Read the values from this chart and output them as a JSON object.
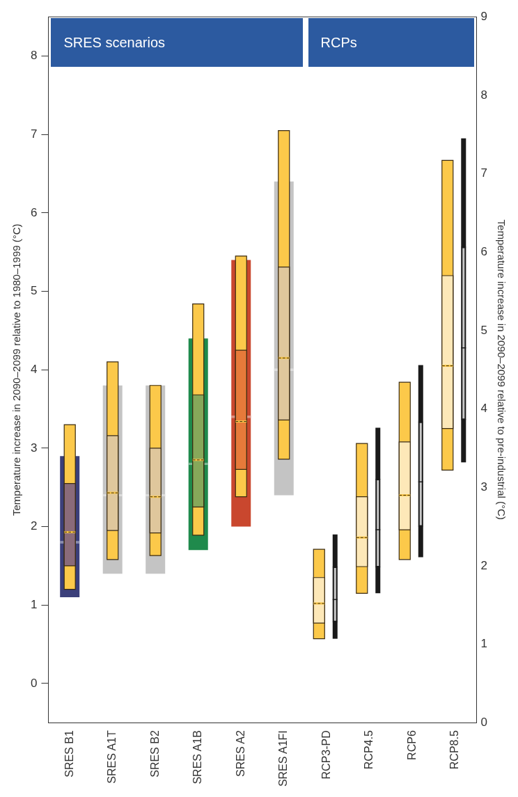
{
  "chart_data": {
    "type": "box",
    "categories": [
      "SRES B1",
      "SRES A1T",
      "SRES B2",
      "SRES A1B",
      "SRES A2",
      "SRES A1FI",
      "RCP3-PD",
      "RCP4.5",
      "RCP6",
      "RCP8.5"
    ],
    "ylabel": "Temperature increase in 2090–2099 relative to 1980–1999 (°C)",
    "y2label": "Temperature increase in 2090–2099 relative to pre-industrial (°C)",
    "annotations": [
      "SRES scenarios",
      "RCPs"
    ],
    "ylim": [
      -0.5,
      8.5
    ],
    "yticks": [
      0,
      1,
      2,
      3,
      4,
      5,
      6,
      7,
      8
    ],
    "y2lim": [
      0,
      9
    ],
    "y2ticks": [
      0,
      1,
      2,
      3,
      4,
      5,
      6,
      7,
      8,
      9
    ],
    "grid": false,
    "legend": false,
    "series": [
      {
        "axis": "y",
        "colors": [
          "#3b3f7a",
          "#c4c4c4",
          "#c4c4c4",
          "#1f8a4c",
          "#c9472e",
          "#c4c4c4",
          null,
          null,
          null,
          null
        ],
        "boxes": [
          {
            "low": 1.1,
            "q1": 1.1,
            "median": 1.8,
            "q3": 2.9,
            "high": 2.9
          },
          {
            "low": 1.4,
            "q1": 1.4,
            "median": 2.4,
            "q3": 3.8,
            "high": 3.8
          },
          {
            "low": 1.4,
            "q1": 1.4,
            "median": 2.4,
            "q3": 3.8,
            "high": 3.8
          },
          {
            "low": 1.7,
            "q1": 1.7,
            "median": 2.8,
            "q3": 4.4,
            "high": 4.4
          },
          {
            "low": 2.0,
            "q1": 2.0,
            "median": 3.4,
            "q3": 5.4,
            "high": 5.4
          },
          {
            "low": 2.4,
            "q1": 2.4,
            "median": 4.0,
            "q3": 6.4,
            "high": 6.4
          },
          null,
          null,
          null,
          null
        ]
      },
      {
        "axis": "y",
        "color": "#fcc94a",
        "colors": [
          "#8a6b7a",
          "#dfc79c",
          "#dfc79c",
          "#86a85a",
          "#e67a3a",
          "#dfc79c",
          null,
          null,
          null,
          null
        ],
        "boxes": [
          {
            "low": 1.2,
            "q1": 1.5,
            "median": 1.93,
            "q3": 2.55,
            "high": 3.3
          },
          {
            "low": 1.58,
            "q1": 1.95,
            "median": 2.43,
            "q3": 3.16,
            "high": 4.1
          },
          {
            "low": 1.63,
            "q1": 1.92,
            "median": 2.38,
            "q3": 3.0,
            "high": 3.8
          },
          {
            "low": 1.89,
            "q1": 2.25,
            "median": 2.85,
            "q3": 3.68,
            "high": 4.84
          },
          {
            "low": 2.38,
            "q1": 2.73,
            "median": 3.34,
            "q3": 4.25,
            "high": 5.45
          },
          {
            "low": 2.86,
            "q1": 3.36,
            "median": 4.15,
            "q3": 5.31,
            "high": 7.05
          },
          null,
          null,
          null,
          null
        ]
      },
      {
        "axis": "y2",
        "color": "#fcc94a",
        "colors": [
          null,
          null,
          null,
          null,
          null,
          null,
          "#fde8b8",
          "#fde8b8",
          "#fde8b8",
          "#fde8b8"
        ],
        "boxes": [
          null,
          null,
          null,
          null,
          null,
          null,
          {
            "low": 1.07,
            "q1": 1.27,
            "median": 1.52,
            "q3": 1.85,
            "high": 2.21
          },
          {
            "low": 1.65,
            "q1": 1.99,
            "median": 2.36,
            "q3": 2.88,
            "high": 3.56
          },
          {
            "low": 2.08,
            "q1": 2.46,
            "median": 2.9,
            "q3": 3.58,
            "high": 4.34
          },
          {
            "low": 3.22,
            "q1": 3.75,
            "median": 4.55,
            "q3": 5.7,
            "high": 7.17
          }
        ]
      },
      {
        "axis": "y2",
        "color": "#1a1a1a",
        "colors": [
          null,
          null,
          null,
          null,
          null,
          null,
          "#c8c8c8",
          "#c8c8c8",
          "#c8c8c8",
          "#c8c8c8"
        ],
        "boxes": [
          null,
          null,
          null,
          null,
          null,
          null,
          {
            "low": 1.07,
            "q1": 1.29,
            "median": 1.57,
            "q3": 1.98,
            "high": 2.4
          },
          {
            "low": 1.65,
            "q1": 1.99,
            "median": 2.46,
            "q3": 3.1,
            "high": 3.76
          },
          {
            "low": 2.11,
            "q1": 2.51,
            "median": 3.07,
            "q3": 3.83,
            "high": 4.56
          },
          {
            "low": 3.32,
            "q1": 3.87,
            "median": 4.78,
            "q3": 6.06,
            "high": 7.45
          }
        ]
      }
    ]
  }
}
